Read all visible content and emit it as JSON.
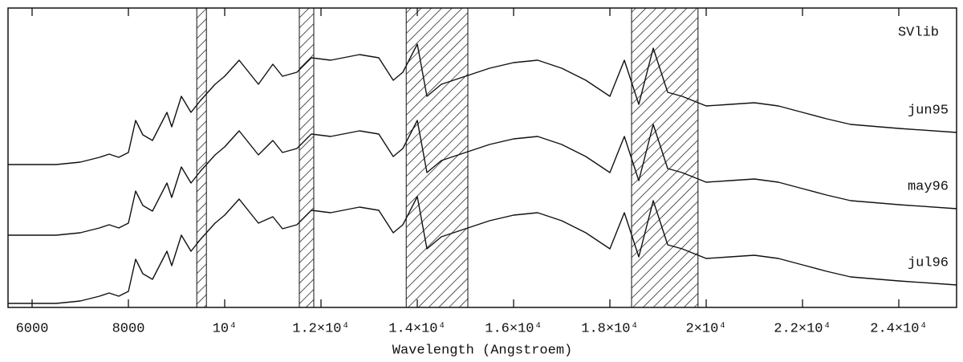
{
  "chart_data": {
    "type": "line",
    "label": "SVlib",
    "xlabel": "Wavelength (Angstroem)",
    "x": [
      5500,
      6500,
      7000,
      7400,
      7600,
      7800,
      8000,
      8150,
      8300,
      8500,
      8800,
      8900,
      9100,
      9300,
      9500,
      9800,
      10000,
      10300,
      10500,
      10700,
      11000,
      11200,
      11500,
      11800,
      12200,
      12800,
      13200,
      13500,
      13700,
      14000,
      14200,
      14500,
      15000,
      15500,
      16000,
      16500,
      17000,
      17500,
      18000,
      18300,
      18600,
      18900,
      19200,
      19500,
      20000,
      20500,
      21000,
      21500,
      22000,
      22500,
      23000,
      24000,
      25200
    ],
    "series": [
      {
        "name": "jun95",
        "color": "#111111",
        "values": [
          178,
          178,
          181,
          187,
          191,
          187,
          193,
          233,
          215,
          208,
          243,
          225,
          263,
          243,
          258,
          278,
          288,
          308,
          293,
          278,
          303,
          288,
          293,
          311,
          308,
          315,
          311,
          283,
          293,
          328,
          263,
          278,
          288,
          298,
          305,
          308,
          298,
          283,
          263,
          308,
          253,
          323,
          268,
          263,
          251,
          253,
          255,
          251,
          243,
          235,
          228,
          223,
          218
        ]
      },
      {
        "name": "may96",
        "color": "#111111",
        "values": [
          90,
          90,
          93,
          99,
          103,
          99,
          105,
          145,
          127,
          120,
          155,
          137,
          175,
          155,
          170,
          190,
          200,
          220,
          205,
          190,
          208,
          193,
          198,
          216,
          213,
          220,
          216,
          188,
          198,
          233,
          168,
          183,
          193,
          203,
          210,
          213,
          203,
          188,
          168,
          213,
          158,
          228,
          173,
          168,
          156,
          158,
          160,
          156,
          148,
          140,
          133,
          128,
          123
        ]
      },
      {
        "name": "jul96",
        "color": "#111111",
        "values": [
          5,
          5,
          8,
          14,
          18,
          14,
          20,
          60,
          42,
          35,
          70,
          52,
          90,
          70,
          85,
          105,
          115,
          135,
          120,
          105,
          113,
          98,
          103,
          121,
          118,
          125,
          121,
          93,
          103,
          138,
          73,
          88,
          98,
          108,
          115,
          118,
          108,
          93,
          73,
          118,
          63,
          133,
          78,
          73,
          61,
          63,
          65,
          61,
          53,
          45,
          38,
          33,
          28
        ]
      }
    ],
    "bands": [
      [
        9420,
        9620
      ],
      [
        11550,
        11850
      ],
      [
        13770,
        15050
      ],
      [
        18450,
        19830
      ]
    ],
    "xlim": [
      5500,
      25200
    ],
    "ylim": [
      0,
      373
    ],
    "xticks": [
      6000,
      8000,
      {
        "value": 10000,
        "label": "10⁴"
      },
      {
        "value": 12000,
        "label": "1.2×10⁴"
      },
      {
        "value": 14000,
        "label": "1.4×10⁴"
      },
      {
        "value": 16000,
        "label": "1.6×10⁴"
      },
      {
        "value": 18000,
        "label": "1.8×10⁴"
      },
      {
        "value": 20000,
        "label": "2×10⁴"
      },
      {
        "value": 22000,
        "label": "2.2×10⁴"
      },
      {
        "value": 24000,
        "label": "2.4×10⁴"
      }
    ]
  }
}
